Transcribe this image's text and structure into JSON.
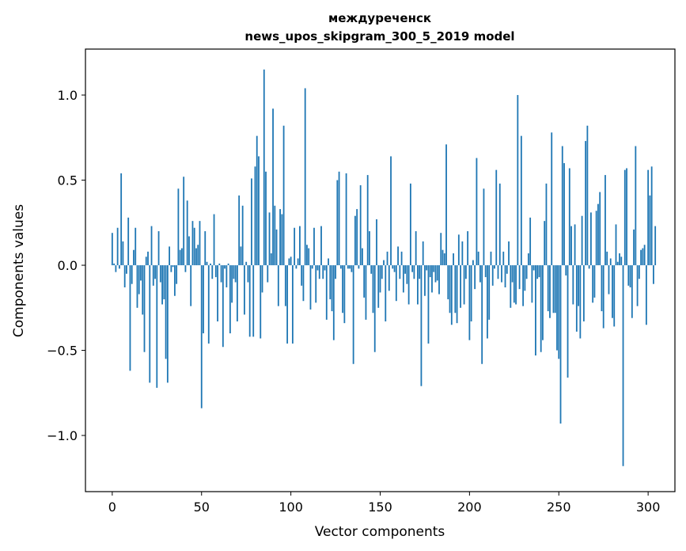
{
  "chart_data": {
    "type": "bar",
    "title_line1": "междуреченск",
    "title_line2": "news_upos_skipgram_300_5_2019 model",
    "xlabel": "Vector components",
    "ylabel": "Components values",
    "xlim": [
      -15,
      315
    ],
    "ylim": [
      -1.33,
      1.27
    ],
    "xticks": [
      0,
      50,
      100,
      150,
      200,
      250,
      300
    ],
    "xtick_labels": [
      "0",
      "50",
      "100",
      "150",
      "200",
      "250",
      "300"
    ],
    "yticks": [
      1.0,
      0.5,
      0.0,
      -0.5,
      -1.0
    ],
    "ytick_labels": [
      "1.0",
      "0.5",
      "0.0",
      "−0.5",
      "−1.0"
    ],
    "bar_color": "#1f77b4",
    "values": [
      0.19,
      0.01,
      -0.04,
      0.22,
      -0.02,
      0.54,
      0.14,
      -0.13,
      -0.05,
      0.28,
      -0.62,
      -0.11,
      0.09,
      0.22,
      -0.25,
      -0.17,
      -0.09,
      -0.29,
      -0.51,
      0.05,
      0.08,
      -0.69,
      0.23,
      -0.12,
      -0.08,
      -0.72,
      0.2,
      -0.1,
      -0.23,
      -0.2,
      -0.55,
      -0.69,
      0.11,
      -0.04,
      -0.01,
      -0.18,
      -0.11,
      0.45,
      0.09,
      0.1,
      0.52,
      -0.04,
      0.38,
      0.17,
      -0.24,
      0.26,
      0.22,
      0.1,
      0.12,
      0.26,
      -0.84,
      -0.4,
      0.2,
      0.02,
      -0.46,
      0.01,
      -0.08,
      0.3,
      -0.07,
      -0.33,
      0.01,
      -0.1,
      -0.48,
      -0.02,
      -0.13,
      0.01,
      -0.4,
      -0.22,
      -0.08,
      -0.1,
      -0.33,
      0.41,
      0.11,
      0.35,
      -0.29,
      0.02,
      -0.1,
      -0.42,
      0.51,
      -0.42,
      0.58,
      0.76,
      0.64,
      -0.43,
      -0.16,
      1.15,
      0.55,
      -0.1,
      0.31,
      0.07,
      0.92,
      0.35,
      0.21,
      -0.24,
      0.33,
      0.3,
      0.82,
      -0.24,
      -0.46,
      0.04,
      0.05,
      -0.46,
      0.22,
      -0.02,
      0.04,
      0.23,
      -0.12,
      -0.21,
      1.04,
      0.12,
      0.1,
      -0.26,
      -0.02,
      0.22,
      -0.22,
      -0.03,
      -0.08,
      0.23,
      -0.08,
      -0.03,
      -0.32,
      0.04,
      -0.2,
      -0.27,
      -0.44,
      -0.08,
      0.5,
      0.55,
      -0.02,
      -0.28,
      -0.34,
      0.54,
      -0.02,
      -0.02,
      -0.04,
      -0.58,
      0.29,
      0.33,
      -0.02,
      0.47,
      0.1,
      -0.19,
      -0.32,
      0.53,
      0.2,
      -0.05,
      -0.28,
      -0.51,
      0.27,
      -0.25,
      -0.16,
      -0.08,
      0.03,
      -0.33,
      0.08,
      -0.15,
      0.64,
      -0.02,
      -0.04,
      -0.21,
      0.11,
      -0.08,
      0.08,
      -0.16,
      -0.05,
      -0.11,
      -0.23,
      0.48,
      -0.04,
      -0.08,
      0.2,
      -0.23,
      -0.08,
      -0.71,
      0.14,
      -0.18,
      -0.03,
      -0.46,
      -0.07,
      -0.16,
      -0.04,
      -0.1,
      -0.09,
      -0.17,
      0.19,
      0.09,
      0.07,
      0.71,
      -0.2,
      -0.28,
      -0.35,
      0.07,
      -0.28,
      -0.34,
      0.18,
      -0.25,
      0.14,
      -0.23,
      -0.08,
      0.2,
      -0.44,
      -0.33,
      0.03,
      -0.14,
      0.63,
      0.08,
      -0.1,
      -0.58,
      0.45,
      -0.07,
      -0.43,
      -0.32,
      0.08,
      -0.12,
      -0.02,
      0.56,
      -0.08,
      0.48,
      -0.1,
      0.08,
      -0.13,
      -0.05,
      0.14,
      -0.25,
      -0.1,
      -0.22,
      -0.23,
      1.0,
      -0.14,
      0.76,
      -0.24,
      -0.15,
      -0.08,
      0.07,
      0.28,
      -0.22,
      -0.03,
      -0.53,
      -0.08,
      -0.07,
      -0.51,
      -0.44,
      0.26,
      0.48,
      -0.27,
      -0.31,
      0.78,
      -0.28,
      -0.28,
      -0.5,
      -0.55,
      -0.93,
      0.7,
      0.6,
      -0.06,
      -0.66,
      0.57,
      0.23,
      -0.23,
      0.24,
      -0.39,
      -0.24,
      -0.43,
      0.29,
      -0.33,
      0.73,
      0.82,
      -0.02,
      0.31,
      -0.22,
      -0.19,
      0.32,
      0.36,
      0.43,
      -0.27,
      -0.37,
      0.53,
      0.08,
      -0.17,
      0.04,
      -0.31,
      -0.36,
      0.24,
      0.02,
      0.07,
      0.05,
      -1.18,
      0.56,
      0.57,
      -0.12,
      -0.13,
      -0.31,
      0.21,
      0.7,
      -0.24,
      -0.08,
      0.09,
      0.1,
      0.12,
      -0.35,
      0.56,
      0.41,
      0.58,
      -0.11,
      0.23
    ]
  }
}
